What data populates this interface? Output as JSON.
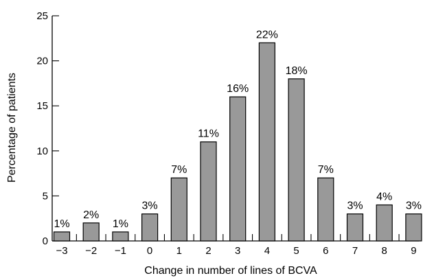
{
  "chart_data": {
    "type": "bar",
    "title": "",
    "xlabel": "Change in number of lines of BCVA",
    "ylabel": "Percentage of patients",
    "categories": [
      "−3",
      "−2",
      "−1",
      "0",
      "1",
      "2",
      "3",
      "4",
      "5",
      "6",
      "7",
      "8",
      "9"
    ],
    "values": [
      1,
      2,
      1,
      3,
      7,
      11,
      16,
      22,
      18,
      7,
      3,
      4,
      3
    ],
    "data_labels": [
      "1%",
      "2%",
      "1%",
      "3%",
      "7%",
      "11%",
      "16%",
      "22%",
      "18%",
      "7%",
      "3%",
      "4%",
      "3%"
    ],
    "ylim": [
      0,
      25
    ],
    "yticks": [
      0,
      5,
      10,
      15,
      20,
      25
    ],
    "bar_color": "#999999",
    "grid": false,
    "legend": "none"
  }
}
